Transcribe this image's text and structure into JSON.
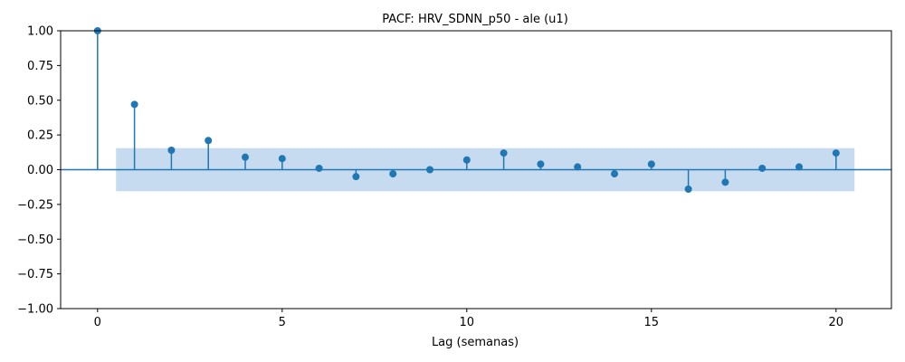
{
  "chart_data": {
    "type": "stem",
    "title": "PACF: HRV_SDNN_p50 - ale (u1)",
    "xlabel": "Lag (semanas)",
    "ylabel": "",
    "xlim": [
      -1,
      21.5
    ],
    "ylim": [
      -1.0,
      1.0
    ],
    "x_ticks": [
      0,
      5,
      10,
      15,
      20
    ],
    "y_ticks": [
      1.0,
      0.75,
      0.5,
      0.25,
      0.0,
      -0.25,
      -0.5,
      -0.75,
      -1.0
    ],
    "x_tick_labels": [
      "0",
      "5",
      "10",
      "15",
      "20"
    ],
    "y_tick_labels": [
      "1.00",
      "0.75",
      "0.50",
      "0.25",
      "0.00",
      "−0.25",
      "−0.50",
      "−0.75",
      "−1.00"
    ],
    "lags": [
      0,
      1,
      2,
      3,
      4,
      5,
      6,
      7,
      8,
      9,
      10,
      11,
      12,
      13,
      14,
      15,
      16,
      17,
      18,
      19,
      20
    ],
    "values": [
      1.0,
      0.47,
      0.14,
      0.21,
      0.09,
      0.08,
      0.01,
      -0.05,
      -0.03,
      0.0,
      0.07,
      0.12,
      0.04,
      0.02,
      -0.03,
      0.04,
      -0.14,
      -0.09,
      0.01,
      0.02,
      0.12
    ],
    "confidence_band": {
      "x_range": [
        0.5,
        20.5
      ],
      "lower": -0.155,
      "upper": 0.155
    },
    "grid": false,
    "colors": {
      "series": "#1f77b4",
      "band": "#c6dbef"
    }
  }
}
